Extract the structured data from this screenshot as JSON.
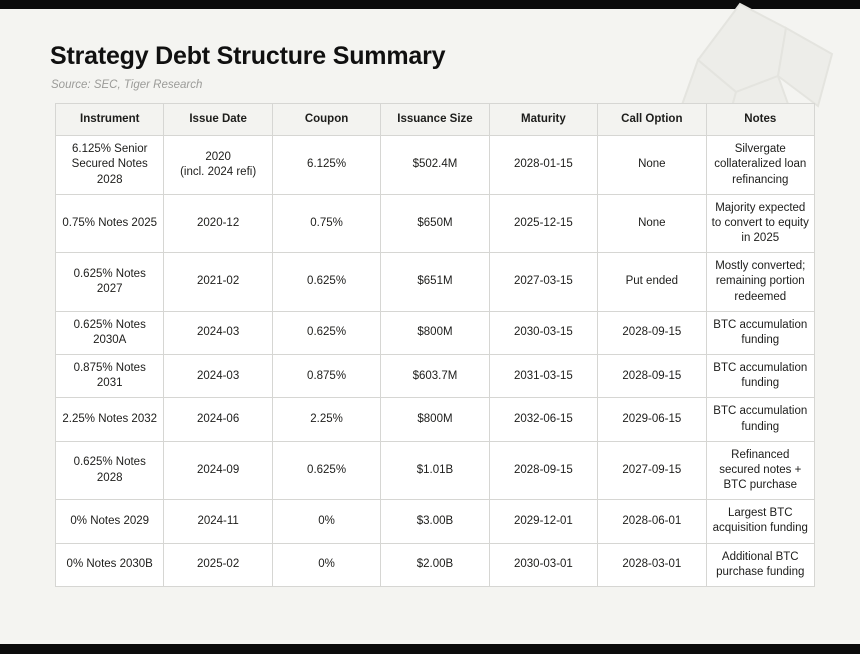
{
  "page": {
    "title": "Strategy Debt Structure Summary",
    "source": "Source: SEC, Tiger Research",
    "watermark_icon": "faceted-logo-watermark"
  },
  "chart_data": {
    "type": "table",
    "title": "Strategy Debt Structure Summary",
    "source": "Source: SEC, Tiger Research",
    "legend_position": "none",
    "grid": true,
    "columns": [
      "Instrument",
      "Issue Date",
      "Coupon",
      "Issuance Size",
      "Maturity",
      "Call Option",
      "Notes"
    ],
    "rows": [
      [
        "6.125% Senior Secured Notes 2028",
        "2020\n(incl. 2024 refi)",
        "6.125%",
        "$502.4M",
        "2028-01-15",
        "None",
        "Silvergate collateralized loan refinancing"
      ],
      [
        "0.75% Notes 2025",
        "2020-12",
        "0.75%",
        "$650M",
        "2025-12-15",
        "None",
        "Majority expected to convert to equity in 2025"
      ],
      [
        "0.625% Notes 2027",
        "2021-02",
        "0.625%",
        "$651M",
        "2027-03-15",
        "Put ended",
        "Mostly converted; remaining portion redeemed"
      ],
      [
        "0.625% Notes 2030A",
        "2024-03",
        "0.625%",
        "$800M",
        "2030-03-15",
        "2028-09-15",
        "BTC accumulation funding"
      ],
      [
        "0.875% Notes 2031",
        "2024-03",
        "0.875%",
        "$603.7M",
        "2031-03-15",
        "2028-09-15",
        "BTC accumulation funding"
      ],
      [
        "2.25% Notes 2032",
        "2024-06",
        "2.25%",
        "$800M",
        "2032-06-15",
        "2029-06-15",
        "BTC accumulation funding"
      ],
      [
        "0.625% Notes 2028",
        "2024-09",
        "0.625%",
        "$1.01B",
        "2028-09-15",
        "2027-09-15",
        "Refinanced secured notes + BTC purchase"
      ],
      [
        "0% Notes 2029",
        "2024-11",
        "0%",
        "$3.00B",
        "2029-12-01",
        "2028-06-01",
        "Largest BTC acquisition funding"
      ],
      [
        "0% Notes 2030B",
        "2025-02",
        "0%",
        "$2.00B",
        "2030-03-01",
        "2028-03-01",
        "Additional BTC purchase funding"
      ]
    ],
    "colors": {
      "page_background": "#f4f4f1",
      "table_background": "#ffffff",
      "header_background": "#f3f3f0",
      "border": "#d6d6d3",
      "text": "#1d1d1b",
      "bar": "#0b0b0b"
    }
  }
}
